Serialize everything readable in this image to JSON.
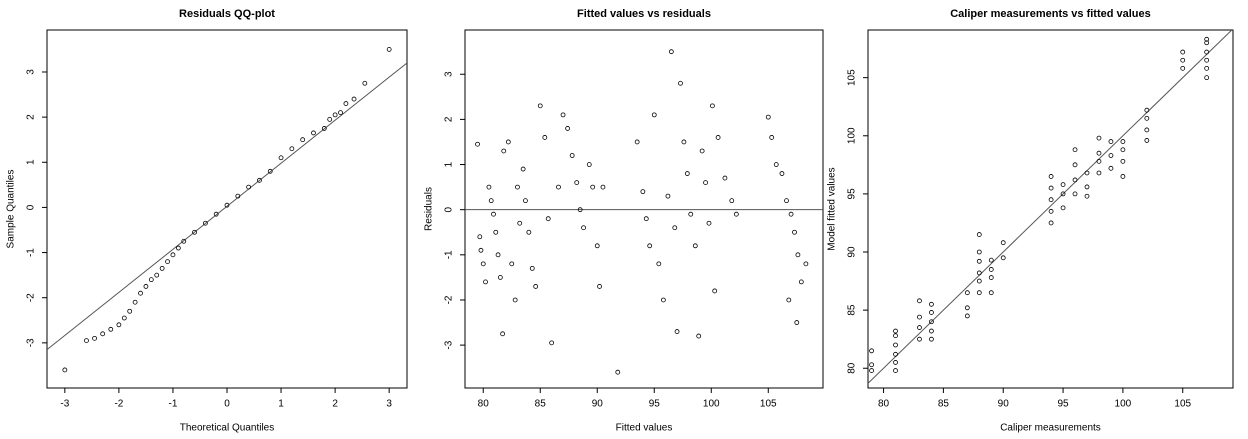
{
  "chart_data": [
    {
      "type": "scatter",
      "title": "Residuals QQ-plot",
      "xlabel": "Theoretical Quantiles",
      "ylabel": "Sample Quantiles",
      "x": [
        -3,
        -2.6,
        -2.45,
        -2.3,
        -2.15,
        -2.0,
        -1.9,
        -1.8,
        -1.7,
        -1.6,
        -1.5,
        -1.4,
        -1.3,
        -1.2,
        -1.1,
        -1.0,
        -0.9,
        -0.8,
        -0.6,
        -0.4,
        -0.2,
        0,
        0.2,
        0.4,
        0.6,
        0.8,
        1.0,
        1.2,
        1.4,
        1.6,
        1.8,
        1.9,
        2.0,
        2.1,
        2.2,
        2.35,
        2.55,
        3.0
      ],
      "y": [
        -3.6,
        -2.95,
        -2.9,
        -2.8,
        -2.7,
        -2.6,
        -2.45,
        -2.3,
        -2.1,
        -1.9,
        -1.75,
        -1.6,
        -1.5,
        -1.35,
        -1.2,
        -1.05,
        -0.9,
        -0.75,
        -0.55,
        -0.35,
        -0.15,
        0.05,
        0.25,
        0.45,
        0.6,
        0.8,
        1.1,
        1.3,
        1.5,
        1.65,
        1.75,
        1.95,
        2.05,
        2.1,
        2.3,
        2.4,
        2.75,
        3.5
      ],
      "xlim": [
        -3.33,
        3.33
      ],
      "ylim": [
        -4.0,
        3.93
      ],
      "xticks": [
        -3,
        -2,
        -1,
        0,
        1,
        2,
        3
      ],
      "yticks": [
        -3,
        -2,
        -1,
        0,
        1,
        2,
        3
      ],
      "reference_line": {
        "x": [
          -3.33,
          3.33
        ],
        "y": [
          -3.15,
          3.2
        ]
      }
    },
    {
      "type": "scatter",
      "title": "Fitted values vs residuals",
      "xlabel": "Fitted values",
      "ylabel": "Residuals",
      "x": [
        79.5,
        79.7,
        79.8,
        80,
        80.2,
        80.5,
        80.7,
        80.9,
        81.1,
        81.3,
        81.5,
        81.7,
        81.8,
        82.2,
        82.5,
        82.8,
        83,
        83.2,
        83.5,
        83.7,
        84,
        84.3,
        84.6,
        85,
        85.4,
        85.7,
        86,
        86.6,
        87,
        87.4,
        87.8,
        88.2,
        88.5,
        88.8,
        89.3,
        89.6,
        90,
        90.2,
        90.5,
        91.8,
        93.5,
        94,
        94.3,
        94.6,
        95,
        95.4,
        95.8,
        96.2,
        96.5,
        96.8,
        97,
        97.3,
        97.6,
        97.9,
        98.2,
        98.6,
        98.9,
        99.2,
        99.5,
        99.8,
        100.1,
        100.3,
        100.6,
        101.2,
        101.8,
        102.2,
        105,
        105.3,
        105.7,
        106.2,
        106.6,
        107,
        107.3,
        107.6,
        107.9,
        106.8,
        107.5,
        108.3
      ],
      "y": [
        1.45,
        -0.6,
        -0.9,
        -1.2,
        -1.6,
        0.5,
        0.2,
        -0.1,
        -0.5,
        -1.0,
        -1.5,
        -2.75,
        1.3,
        1.5,
        -1.2,
        -2.0,
        0.5,
        -0.3,
        0.9,
        0.2,
        -0.5,
        -1.3,
        -1.7,
        2.3,
        1.6,
        -0.2,
        -2.95,
        0.5,
        2.1,
        1.8,
        1.2,
        0.6,
        0,
        -0.4,
        1.0,
        0.5,
        -0.8,
        -1.7,
        0.5,
        -3.6,
        1.5,
        0.4,
        -0.2,
        -0.8,
        2.1,
        -1.2,
        -2.0,
        0.3,
        3.5,
        -0.4,
        -2.7,
        2.8,
        1.5,
        0.8,
        -0.1,
        -0.8,
        -2.8,
        1.3,
        0.6,
        -0.3,
        2.3,
        -1.8,
        1.6,
        0.7,
        0.2,
        -0.1,
        2.05,
        1.6,
        1.0,
        0.8,
        0.2,
        -0.1,
        -0.5,
        -1.0,
        -1.6,
        -2.0,
        -2.5,
        -1.2
      ],
      "xlim": [
        78.4,
        109.8
      ],
      "ylim": [
        -3.95,
        3.98
      ],
      "xticks": [
        80,
        85,
        90,
        95,
        100,
        105
      ],
      "yticks": [
        -3,
        -2,
        -1,
        0,
        1,
        2,
        3
      ],
      "reference_line": {
        "x": [
          78.4,
          109.8
        ],
        "y": [
          0,
          0
        ]
      }
    },
    {
      "type": "scatter",
      "title": "Caliper measurements vs fitted values",
      "xlabel": "Caliper measurements",
      "ylabel": "Model fitted values",
      "x": [
        79,
        79,
        79,
        81,
        81,
        81,
        81,
        81,
        81,
        83,
        83,
        83,
        83,
        84,
        84,
        84,
        84,
        84,
        87,
        87,
        87,
        88,
        88,
        88,
        88,
        88,
        88,
        89,
        89,
        89,
        89,
        90,
        90,
        94,
        94,
        94,
        94,
        94,
        95,
        95,
        95,
        96,
        96,
        96,
        96,
        97,
        97,
        97,
        98,
        98,
        98,
        98,
        99,
        99,
        99,
        100,
        100,
        100,
        100,
        102,
        102,
        102,
        102,
        105,
        105,
        105,
        107,
        107,
        107,
        107,
        107,
        107
      ],
      "y": [
        79.8,
        80.3,
        81.5,
        79.8,
        80.5,
        81.2,
        82,
        82.8,
        83.2,
        82.5,
        83.5,
        84.4,
        85.8,
        82.5,
        83.2,
        84,
        84.8,
        85.5,
        84.5,
        85.2,
        86.5,
        86.5,
        87.5,
        88.2,
        89.2,
        90,
        91.5,
        86.5,
        87.8,
        88.5,
        89.3,
        89.5,
        90.8,
        92.5,
        93.5,
        94.5,
        95.5,
        96.5,
        93.8,
        95,
        95.8,
        95,
        96.2,
        97.5,
        98.8,
        94.8,
        95.6,
        96.8,
        96.8,
        97.8,
        98.5,
        99.8,
        97.2,
        98.3,
        99.5,
        96.5,
        97.8,
        98.8,
        99.5,
        99.6,
        100.5,
        101.5,
        102.2,
        105.8,
        106.5,
        107.2,
        105,
        105.8,
        106.5,
        107.2,
        108,
        108.3
      ],
      "xlim": [
        78.7,
        109.2
      ],
      "ylim": [
        78.3,
        109.1
      ],
      "xticks": [
        80,
        85,
        90,
        95,
        100,
        105
      ],
      "yticks": [
        80,
        85,
        90,
        95,
        100,
        105
      ],
      "reference_line": {
        "x": [
          78.3,
          109.2
        ],
        "y": [
          78.3,
          109.2
        ]
      }
    }
  ]
}
